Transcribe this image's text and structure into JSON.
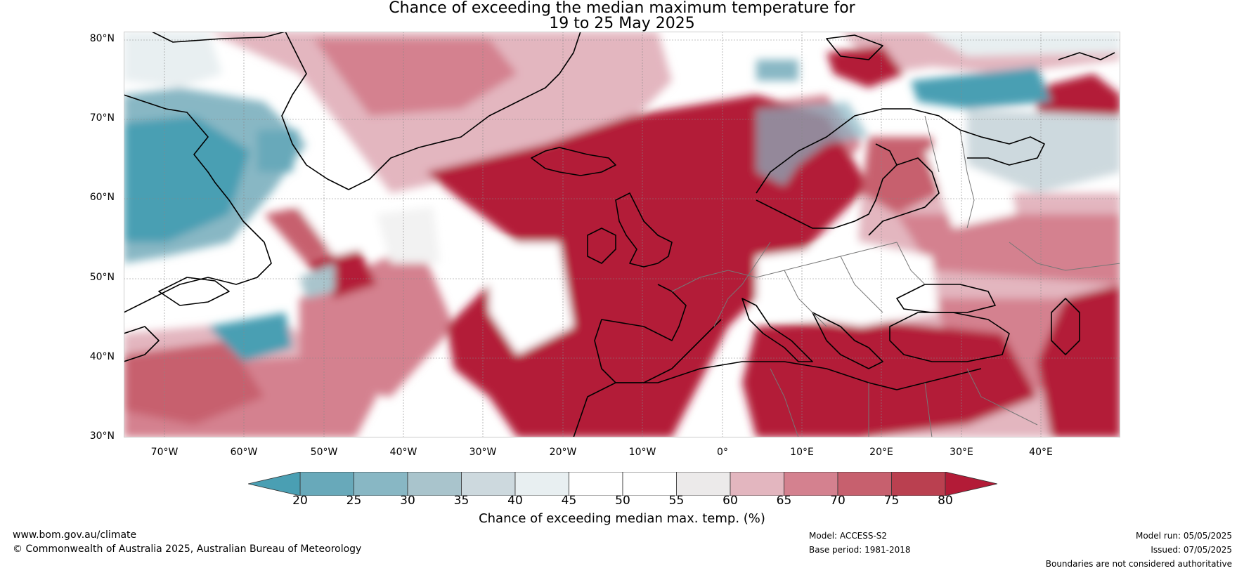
{
  "title": {
    "line1": "Chance of exceeding the median maximum temperature for",
    "line2": "19 to 25 May 2025"
  },
  "lat_labels": [
    "80°N",
    "70°N",
    "60°N",
    "50°N",
    "40°N",
    "30°N"
  ],
  "lon_labels": [
    "70°W",
    "60°W",
    "50°W",
    "40°W",
    "30°W",
    "20°W",
    "10°W",
    "0°",
    "10°E",
    "20°E",
    "30°E",
    "40°E"
  ],
  "colorbar": {
    "ticks": [
      "20",
      "25",
      "30",
      "35",
      "40",
      "45",
      "50",
      "55",
      "60",
      "65",
      "70",
      "75",
      "80"
    ],
    "label": "Chance of exceeding median max. temp. (%)",
    "colors": [
      "#4a9fb3",
      "#68a9ba",
      "#88b7c4",
      "#a9c4cc",
      "#cdd9de",
      "#e8eff1",
      "#ffffff",
      "#ffffff",
      "#eceaea",
      "#e3b6bf",
      "#d4818f",
      "#c7606e",
      "#ba4050",
      "#b31b37"
    ]
  },
  "footer": {
    "website": "www.bom.gov.au/climate",
    "copyright": "© Commonwealth of Australia 2025, Australian Bureau of Meteorology",
    "model": "Model: ACCESS-S2",
    "base_period": "Base period: 1981-2018",
    "model_run": "Model run: 05/05/2025",
    "issued": "Issued: 07/05/2025",
    "disclaimer": "Boundaries are not considered authoritative"
  }
}
